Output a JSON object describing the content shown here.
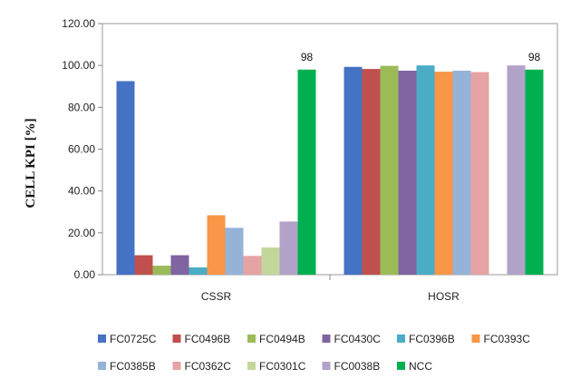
{
  "chart_data": {
    "type": "bar",
    "title": "",
    "xlabel": "",
    "ylabel": "CELL KPI [%]",
    "ylim": [
      0,
      120
    ],
    "yticks": [
      "0.00",
      "20.00",
      "40.00",
      "60.00",
      "80.00",
      "100.00",
      "120.00"
    ],
    "grid": false,
    "legend_position": "bottom",
    "categories": [
      "CSSR",
      "HOSR"
    ],
    "series": [
      {
        "name": "FC0725C",
        "color": "#4472c4",
        "values": [
          92.5,
          99.3
        ]
      },
      {
        "name": "FC0496B",
        "color": "#c0504d",
        "values": [
          9.3,
          98.3
        ]
      },
      {
        "name": "FC0494B",
        "color": "#9bbb59",
        "values": [
          4.3,
          99.8
        ]
      },
      {
        "name": "FC0430C",
        "color": "#8064a2",
        "values": [
          9.3,
          97.5
        ]
      },
      {
        "name": "FC0396B",
        "color": "#4bacc6",
        "values": [
          3.5,
          100.0
        ]
      },
      {
        "name": "FC0393C",
        "color": "#f79646",
        "values": [
          28.4,
          97.0
        ]
      },
      {
        "name": "FC0385B",
        "color": "#95b3d7",
        "values": [
          22.4,
          97.5
        ]
      },
      {
        "name": "FC0362C",
        "color": "#e6a3a3",
        "values": [
          9.0,
          96.8
        ]
      },
      {
        "name": "FC0301C",
        "color": "#c4d79b",
        "values": [
          13.0,
          null
        ]
      },
      {
        "name": "FC0038B",
        "color": "#b2a2c7",
        "values": [
          25.4,
          100.0
        ]
      },
      {
        "name": "NCC",
        "color": "#00b050",
        "values": [
          98,
          98
        ]
      }
    ],
    "data_labels": [
      {
        "series": "NCC",
        "category": "CSSR",
        "text": "98"
      },
      {
        "series": "NCC",
        "category": "HOSR",
        "text": "98"
      }
    ]
  }
}
